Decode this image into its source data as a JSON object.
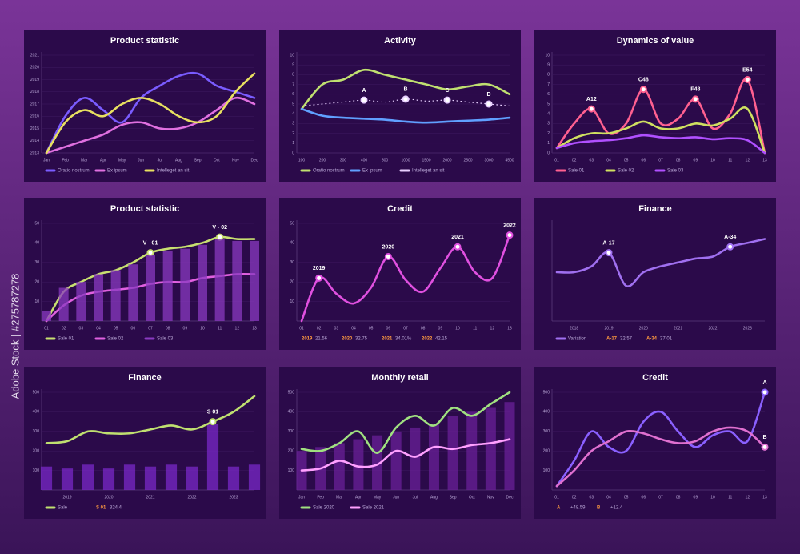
{
  "watermark": "Adobe Stock | #275787278",
  "chart_data": [
    {
      "type": "line",
      "title": "Product statistic",
      "categories": [
        "Jan",
        "Feb",
        "Mar",
        "Apr",
        "May",
        "Jun",
        "Jul",
        "Aug",
        "Sep",
        "Oct",
        "Nov",
        "Dec"
      ],
      "ylim": [
        2013,
        2021
      ],
      "yticks": [
        2013,
        2014,
        2015,
        2016,
        2017,
        2018,
        2019,
        2020,
        2021
      ],
      "series": [
        {
          "name": "Oratio nostrum",
          "color": "#7a5cff",
          "values": [
            2013,
            2016,
            2017.5,
            2016.5,
            2015.5,
            2017.5,
            2018.5,
            2019.3,
            2019.5,
            2018.5,
            2018,
            2017.5
          ]
        },
        {
          "name": "Ex ipsum",
          "color": "#e070e0",
          "values": [
            2013,
            2013.5,
            2014,
            2014.5,
            2015.3,
            2015.5,
            2015,
            2015,
            2015.5,
            2016.5,
            2017.5,
            2017
          ]
        },
        {
          "name": "Intelleget an sit",
          "color": "#e8e060",
          "values": [
            2013,
            2015.5,
            2016.5,
            2016,
            2017,
            2017.5,
            2017,
            2016,
            2015.5,
            2016,
            2018,
            2019.5
          ]
        }
      ]
    },
    {
      "type": "line",
      "title": "Activity",
      "categories": [
        "100",
        "200",
        "300",
        "400",
        "500",
        "1000",
        "1500",
        "2000",
        "2500",
        "3000",
        "4500"
      ],
      "ylim": [
        0,
        10
      ],
      "yticks": [
        0,
        1,
        2,
        3,
        4,
        5,
        6,
        7,
        8,
        9,
        10
      ],
      "series": [
        {
          "name": "Oratio nostrum",
          "color": "#c0e070",
          "values": [
            4.5,
            7,
            7.5,
            8.5,
            8,
            7.5,
            7,
            6.5,
            6.8,
            7,
            6
          ]
        },
        {
          "name": "Ex ipsum",
          "color": "#60a0ff",
          "values": [
            4.5,
            3.8,
            3.6,
            3.5,
            3.4,
            3.2,
            3.1,
            3.2,
            3.3,
            3.4,
            3.6
          ]
        },
        {
          "name": "Intelleget an sit",
          "color": "#e8d0ff",
          "style": "dotted",
          "values": [
            4.8,
            5,
            5.2,
            5.4,
            5.2,
            5.5,
            5.3,
            5.4,
            5.2,
            5,
            4.8
          ],
          "point_labels": [
            null,
            null,
            null,
            "A",
            null,
            "B",
            null,
            "C",
            null,
            "D",
            null
          ]
        }
      ]
    },
    {
      "type": "line",
      "title": "Dynamics of value",
      "categories": [
        "01",
        "02",
        "03",
        "04",
        "05",
        "06",
        "07",
        "08",
        "09",
        "10",
        "11",
        "12",
        "13"
      ],
      "ylim": [
        0,
        10
      ],
      "yticks": [
        0,
        1,
        2,
        3,
        4,
        5,
        6,
        7,
        8,
        9,
        10
      ],
      "series": [
        {
          "name": "Sale 01",
          "color": "#ff6090",
          "values": [
            0.5,
            3,
            4.5,
            2,
            3,
            6.5,
            3,
            3.5,
            5.5,
            2.5,
            4,
            7.5,
            0
          ],
          "point_labels": [
            null,
            null,
            "A12",
            null,
            null,
            "C48",
            null,
            null,
            "F48",
            null,
            null,
            "E54",
            null
          ]
        },
        {
          "name": "Sale 02",
          "color": "#d0e060",
          "values": [
            0.5,
            1.5,
            2,
            2,
            2.5,
            3.2,
            2.5,
            2.5,
            3,
            2.8,
            3.5,
            4.5,
            0
          ]
        },
        {
          "name": "Sale 03",
          "color": "#b050ff",
          "values": [
            0.5,
            1,
            1.2,
            1.3,
            1.5,
            1.8,
            1.6,
            1.5,
            1.6,
            1.4,
            1.5,
            1.3,
            0
          ]
        }
      ]
    },
    {
      "type": "line",
      "title": "Product statistic",
      "categories": [
        "01",
        "02",
        "03",
        "04",
        "05",
        "06",
        "07",
        "08",
        "09",
        "10",
        "11",
        "12",
        "13"
      ],
      "ylim": [
        0,
        50
      ],
      "yticks": [
        10,
        20,
        30,
        40,
        50
      ],
      "series": [
        {
          "name": "Sale 01",
          "color": "#c8e070",
          "values": [
            0,
            15,
            20,
            24,
            26,
            30,
            35,
            37,
            38,
            40,
            43,
            42,
            42
          ],
          "point_labels": [
            null,
            null,
            null,
            null,
            null,
            null,
            "V - 01",
            null,
            null,
            null,
            "V - 02",
            null,
            null
          ]
        },
        {
          "name": "Sale 02",
          "color": "#e060e0",
          "values": [
            0,
            8,
            13,
            15,
            16,
            17,
            19,
            20,
            20,
            22,
            23,
            24,
            24
          ]
        },
        {
          "name": "Sale 03",
          "color": "#8a3ac0",
          "style": "bar",
          "values": [
            5,
            17,
            20,
            24,
            26,
            29,
            34,
            36,
            37,
            39,
            42,
            41,
            41
          ]
        }
      ]
    },
    {
      "type": "line",
      "title": "Credit",
      "categories": [
        "01",
        "02",
        "03",
        "04",
        "05",
        "06",
        "07",
        "08",
        "09",
        "10",
        "11",
        "12",
        "13"
      ],
      "ylim": [
        0,
        50
      ],
      "yticks": [
        10,
        20,
        30,
        40,
        50
      ],
      "series": [
        {
          "color": "#e050e0",
          "values": [
            0,
            22,
            14,
            9,
            17,
            33,
            21,
            15,
            27,
            38,
            25,
            22,
            44
          ],
          "point_labels": [
            null,
            "2019",
            null,
            null,
            null,
            "2020",
            null,
            null,
            null,
            "2021",
            null,
            null,
            "2022"
          ]
        }
      ],
      "legend": [
        {
          "label": "2019",
          "value": "21.56"
        },
        {
          "label": "2020",
          "value": "32.75"
        },
        {
          "label": "2021",
          "value": "34.01%"
        },
        {
          "label": "2022",
          "value": "42.15"
        }
      ]
    },
    {
      "type": "line",
      "title": "Finance",
      "categories": [
        null,
        "2018",
        null,
        "2019",
        null,
        "2020",
        null,
        "2021",
        null,
        "2022",
        null,
        "2023",
        null
      ],
      "ylim": [
        0,
        50
      ],
      "series": [
        {
          "name": "Variation",
          "color": "#a070f0",
          "values": [
            25,
            25,
            28,
            35,
            18,
            25,
            28,
            30,
            32,
            33,
            38,
            40,
            42
          ],
          "point_labels": [
            null,
            null,
            null,
            "A-17",
            null,
            null,
            null,
            null,
            null,
            null,
            "A-34",
            null,
            null
          ]
        }
      ],
      "legend": [
        {
          "label": "A-17",
          "value": "32.57"
        },
        {
          "label": "A-34",
          "value": "37.01"
        }
      ]
    },
    {
      "type": "line",
      "title": "Finance",
      "categories": [
        null,
        "2019",
        null,
        "2020",
        null,
        "2021",
        null,
        "2022",
        null,
        "2023",
        null
      ],
      "ylim": [
        0,
        500
      ],
      "yticks": [
        100,
        200,
        300,
        400,
        500
      ],
      "series": [
        {
          "color": "#7a28c8",
          "style": "bar",
          "values": [
            120,
            110,
            130,
            110,
            130,
            120,
            130,
            120,
            340,
            120,
            130
          ]
        },
        {
          "name": "Sale",
          "color": "#c0e070",
          "values": [
            240,
            250,
            300,
            290,
            290,
            310,
            330,
            310,
            350,
            400,
            480
          ],
          "point_labels": [
            null,
            null,
            null,
            null,
            null,
            null,
            null,
            null,
            "S 01",
            null,
            null
          ]
        }
      ],
      "legend": [
        {
          "label": "S 01",
          "value": "324.4"
        }
      ]
    },
    {
      "type": "line",
      "title": "Monthly retail",
      "categories": [
        "Jan",
        "Feb",
        "Mar",
        "Apr",
        "May",
        "Jun",
        "Jul",
        "Aug",
        "Sep",
        "Oct",
        "Nov",
        "Dec"
      ],
      "ylim": [
        0,
        500
      ],
      "yticks": [
        100,
        200,
        300,
        400,
        500
      ],
      "series": [
        {
          "color": "#6a2098",
          "style": "bar",
          "values": [
            200,
            220,
            240,
            260,
            280,
            300,
            320,
            340,
            380,
            400,
            420,
            450
          ]
        },
        {
          "name": "Sale 2020",
          "color": "#a0e080",
          "values": [
            210,
            200,
            240,
            300,
            190,
            320,
            380,
            330,
            420,
            380,
            440,
            500
          ]
        },
        {
          "name": "Sale 2021",
          "color": "#ffa0ff",
          "values": [
            100,
            110,
            150,
            120,
            130,
            200,
            170,
            220,
            210,
            230,
            240,
            260
          ]
        }
      ]
    },
    {
      "type": "line",
      "title": "Credit",
      "categories": [
        "01",
        "02",
        "03",
        "04",
        "05",
        "06",
        "07",
        "08",
        "09",
        "10",
        "11",
        "12",
        "13"
      ],
      "ylim": [
        0,
        500
      ],
      "yticks": [
        100,
        200,
        300,
        400,
        500
      ],
      "series": [
        {
          "color": "#8a60ff",
          "values": [
            20,
            150,
            300,
            220,
            200,
            350,
            400,
            300,
            220,
            280,
            300,
            250,
            500
          ],
          "point_labels": [
            null,
            null,
            null,
            null,
            null,
            null,
            null,
            null,
            null,
            null,
            null,
            null,
            "A"
          ]
        },
        {
          "color": "#e070d0",
          "values": [
            20,
            100,
            200,
            250,
            300,
            290,
            260,
            240,
            250,
            300,
            320,
            300,
            220
          ],
          "point_labels": [
            null,
            null,
            null,
            null,
            null,
            null,
            null,
            null,
            null,
            null,
            null,
            null,
            "B"
          ]
        }
      ],
      "legend": [
        {
          "label": "A",
          "value": "+48.59"
        },
        {
          "label": "B",
          "value": "+12.4"
        }
      ]
    }
  ]
}
